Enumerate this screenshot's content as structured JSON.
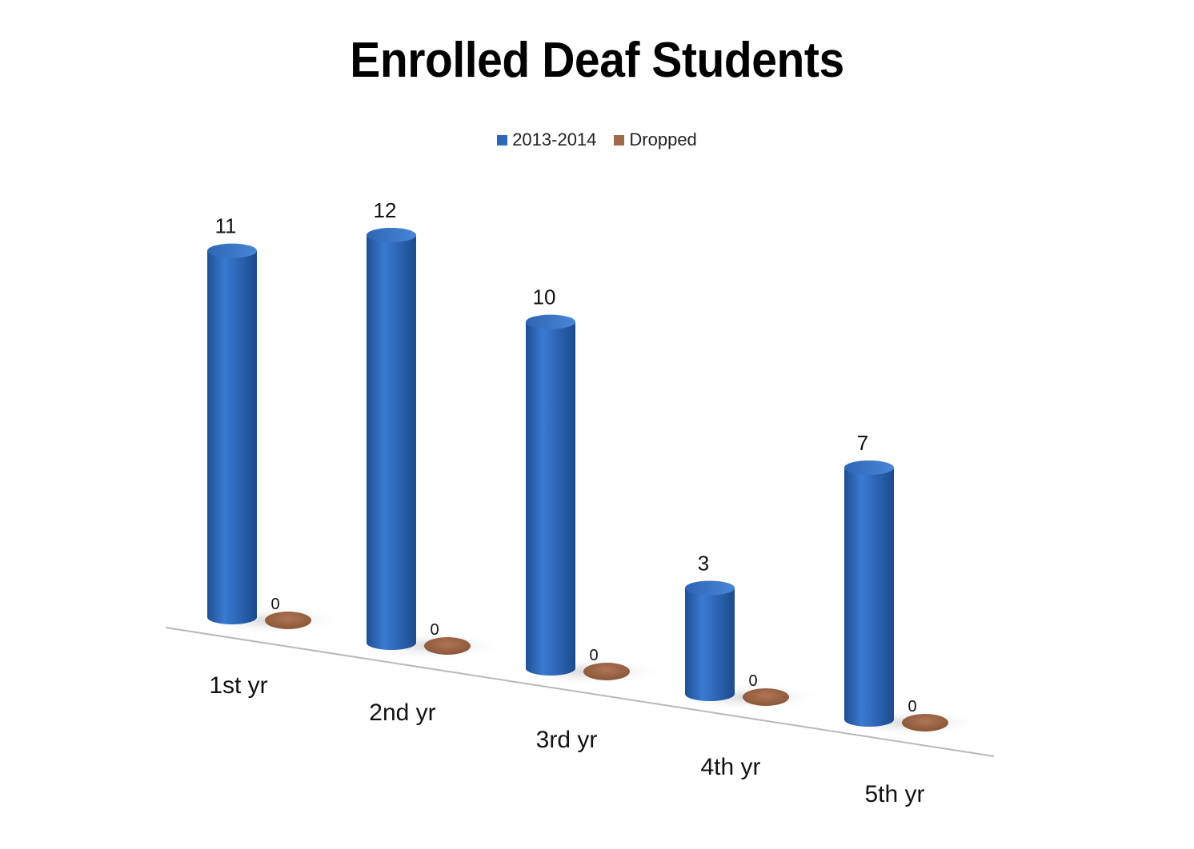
{
  "chart_data": {
    "type": "bar",
    "title": "Enrolled Deaf Students",
    "categories": [
      "1st yr",
      "2nd yr",
      "3rd yr",
      "4th yr",
      "5th yr"
    ],
    "series": [
      {
        "name": "2013-2014",
        "values": [
          11,
          12,
          10,
          3,
          7
        ],
        "color": "#2e68b8"
      },
      {
        "name": "Dropped",
        "values": [
          0,
          0,
          0,
          0,
          0
        ],
        "color": "#a0694a"
      }
    ],
    "xlabel": "",
    "ylabel": "",
    "ylim": [
      0,
      12
    ],
    "grid": false,
    "legend_position": "top",
    "style": "3d-cylinder"
  }
}
